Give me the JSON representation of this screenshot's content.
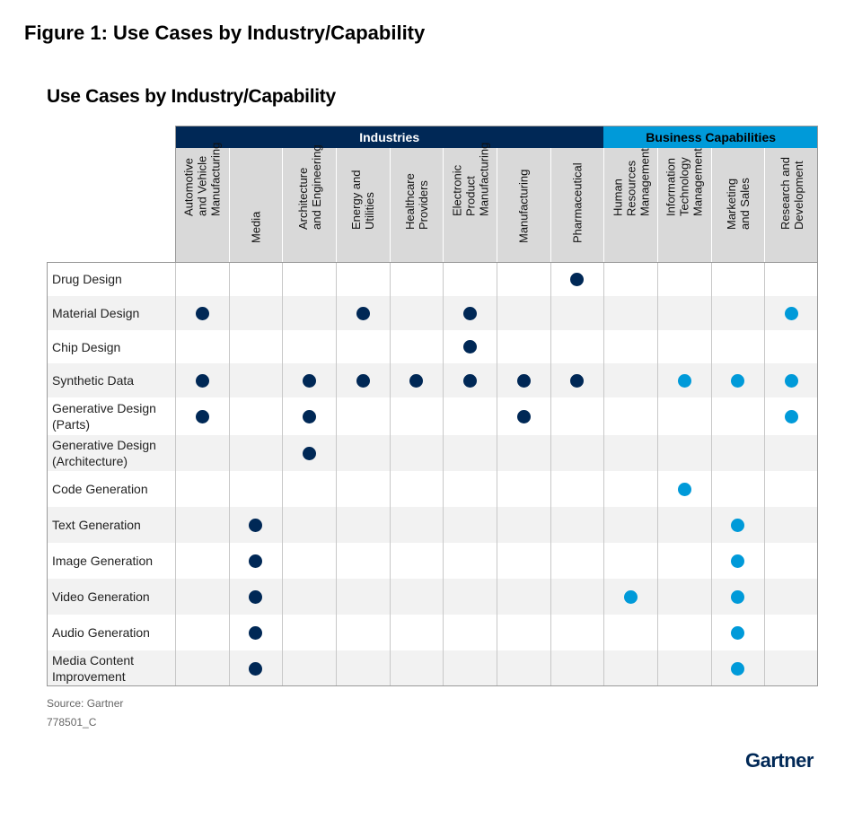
{
  "figure_title": "Figure 1: Use Cases by Industry/Capability",
  "source": "Source: Gartner",
  "figure_code": "778501_C",
  "logo": "Gartner",
  "colors": {
    "industries": "#002856",
    "business_capabilities": "#009ad9",
    "header_bg": "#d9d9d9",
    "stripe": "#f2f2f2"
  },
  "chart_data": {
    "type": "table",
    "title": "Use Cases by Industry/Capability",
    "groups": [
      {
        "label": "Industries",
        "columns": [
          0,
          1,
          2,
          3,
          4,
          5,
          6,
          7
        ]
      },
      {
        "label": "Business Capabilities",
        "columns": [
          8,
          9,
          10,
          11
        ]
      }
    ],
    "columns": [
      "Automotive\nand Vehicle\nManufacturing",
      "Media",
      "Architecture\nand Engineering",
      "Energy and\nUtilities",
      "Healthcare\nProviders",
      "Electronic\nProduct\nManufacturing",
      "Manufacturing",
      "Pharmaceutical",
      "Human\nResources\nManagement",
      "Information\nTechnology\nManagement",
      "Marketing\nand Sales",
      "Research and\nDevelopment"
    ],
    "rows": [
      {
        "label": "Drug Design",
        "marks": [
          7
        ]
      },
      {
        "label": "Material Design",
        "marks": [
          0,
          3,
          5,
          11
        ]
      },
      {
        "label": "Chip Design",
        "marks": [
          5
        ]
      },
      {
        "label": "Synthetic Data",
        "marks": [
          0,
          2,
          3,
          4,
          5,
          6,
          7,
          9,
          10,
          11
        ]
      },
      {
        "label": "Generative Design\n(Parts)",
        "marks": [
          0,
          2,
          6,
          11
        ]
      },
      {
        "label": "Generative Design\n(Architecture)",
        "marks": [
          2
        ]
      },
      {
        "label": "Code Generation",
        "marks": [
          9
        ]
      },
      {
        "label": "Text Generation",
        "marks": [
          1,
          10
        ]
      },
      {
        "label": "Image Generation",
        "marks": [
          1,
          10
        ]
      },
      {
        "label": "Video Generation",
        "marks": [
          1,
          8,
          10
        ]
      },
      {
        "label": "Audio Generation",
        "marks": [
          1,
          10
        ]
      },
      {
        "label": "Media Content\nImprovement",
        "marks": [
          1,
          10
        ]
      }
    ]
  }
}
